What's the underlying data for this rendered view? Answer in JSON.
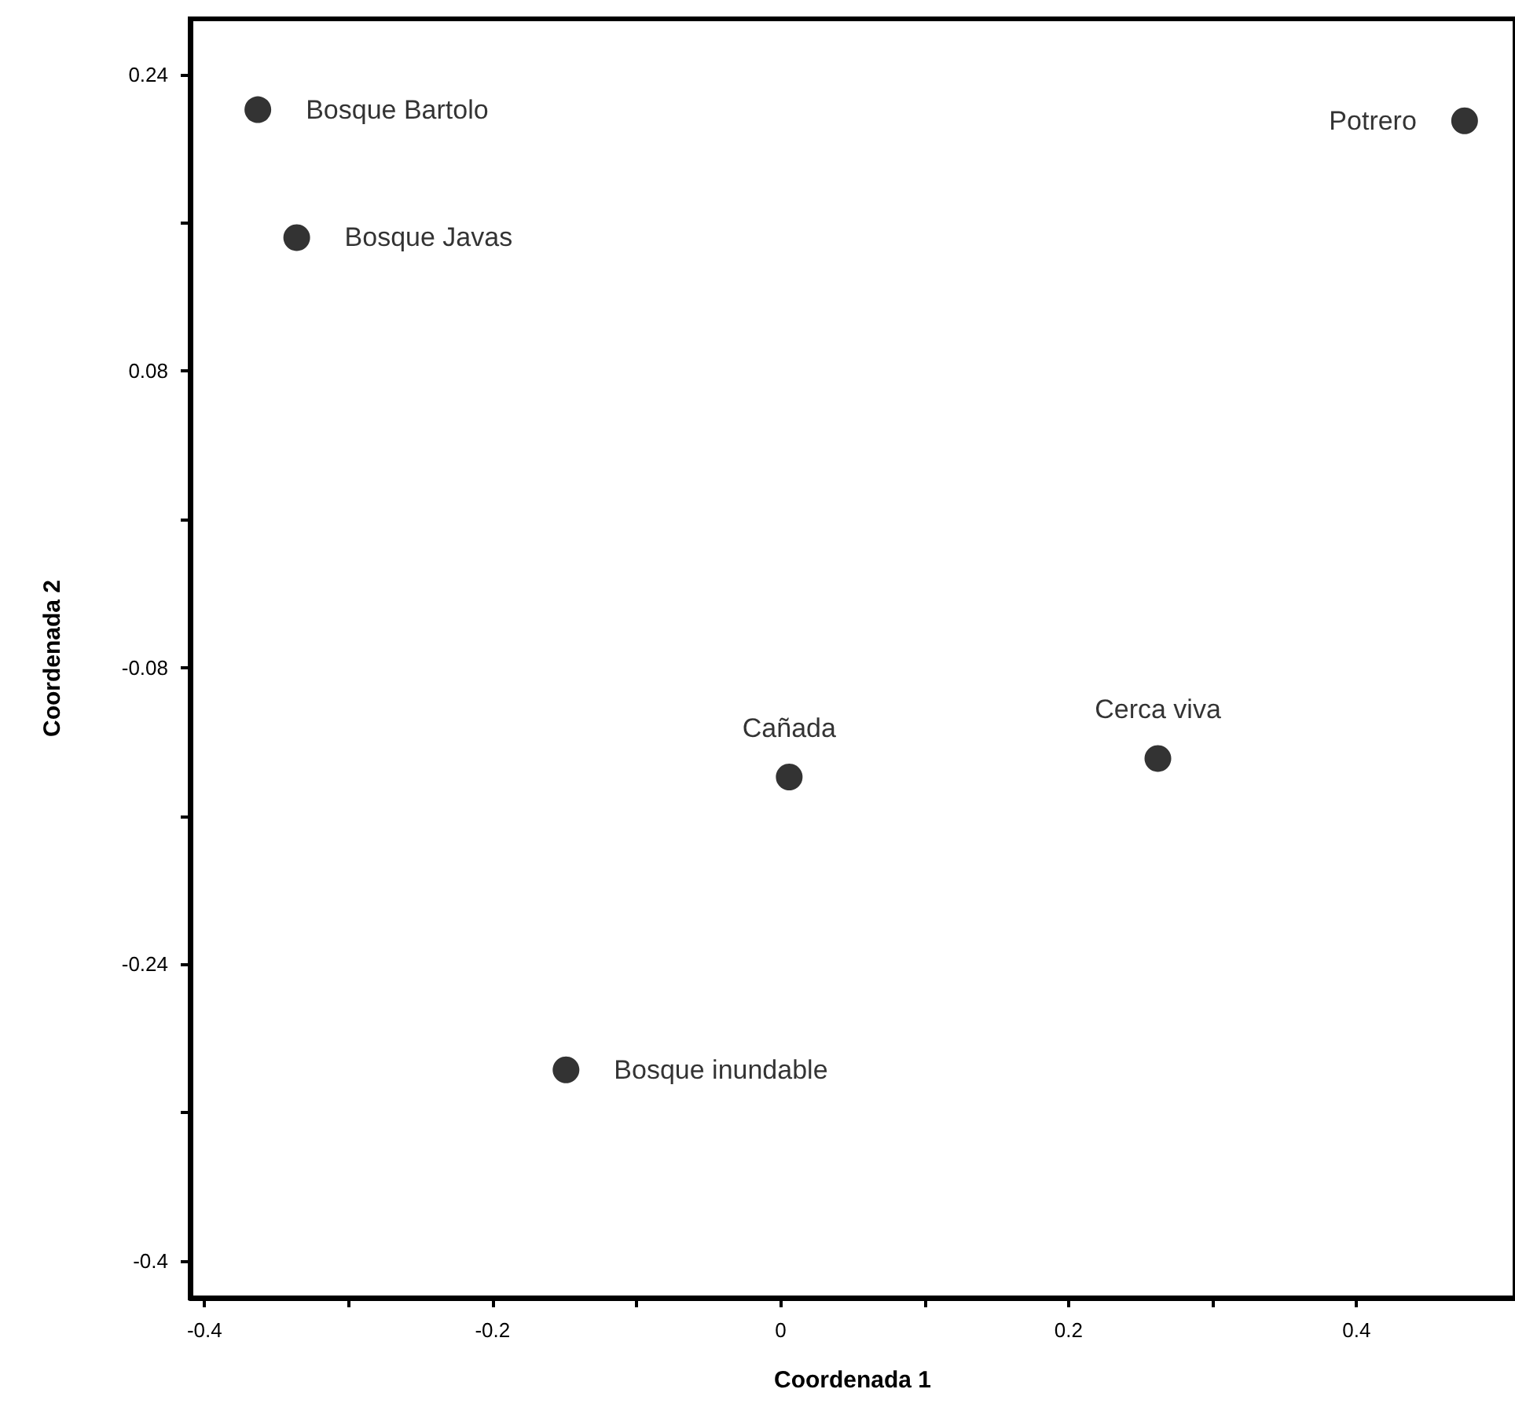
{
  "chart_data": {
    "type": "scatter",
    "xlabel": "Coordenada 1",
    "ylabel": "Coordenada 2",
    "x": [
      -0.363,
      -0.336,
      0.475,
      0.006,
      0.262,
      -0.149
    ],
    "values": [
      0.221,
      0.152,
      0.215,
      -0.139,
      -0.129,
      -0.297
    ],
    "value_labels": [
      "Bosque Bartolo",
      "Bosque Javas",
      "Potrero",
      "Cañada",
      "Cerca viva",
      "Bosque inundable"
    ],
    "color": "#000000",
    "marker": "circle",
    "grid": false,
    "xlim": [
      -0.41,
      0.51
    ],
    "xticks": [
      -0.4,
      {
        "value": -0.3,
        "label": null
      },
      -0.2,
      {
        "value": -0.1,
        "label": null
      },
      0,
      {
        "value": 0.1,
        "label": null
      },
      0.2,
      {
        "value": 0.3,
        "label": null
      },
      0.4
    ],
    "ylim": [
      -0.42,
      0.27
    ],
    "yticks": [
      -0.4,
      {
        "value": -0.32,
        "label": null
      },
      -0.24,
      {
        "value": -0.16,
        "label": null
      },
      -0.08,
      {
        "value": 0,
        "label": null
      },
      0.08,
      {
        "value": 0.16,
        "label": null
      },
      0.24
    ]
  }
}
